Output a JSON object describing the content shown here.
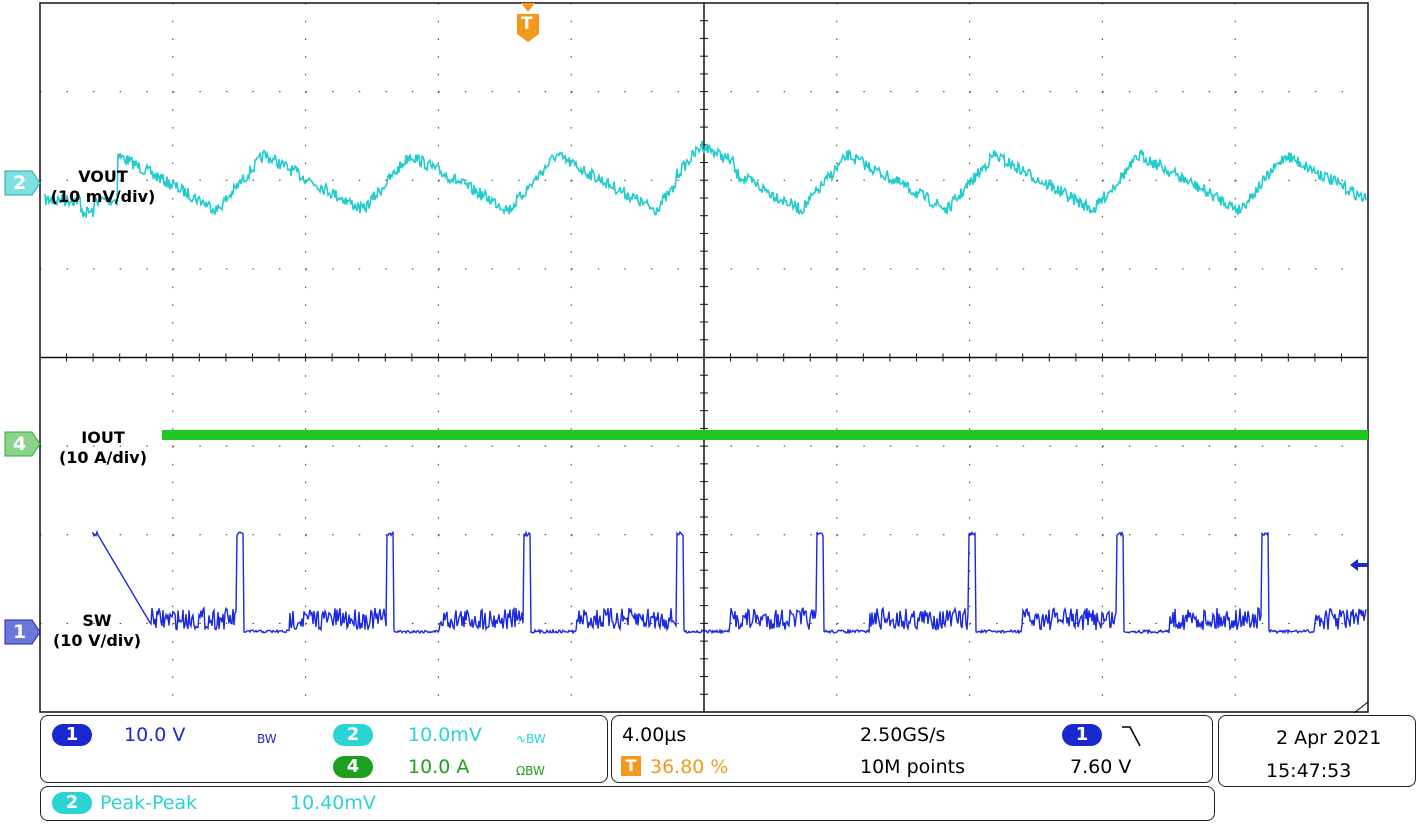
{
  "trigger_marker": "T",
  "channels": [
    {
      "number": "2",
      "label": "VOUT",
      "scale": "(10 mV/div)"
    },
    {
      "number": "4",
      "label": "IOUT",
      "scale": "(10 A/div)"
    },
    {
      "number": "1",
      "label": "SW",
      "scale": "(10 V/div)"
    }
  ],
  "status": {
    "ch1": {
      "number": "1",
      "scale": "10.0 V",
      "flags": "BW"
    },
    "ch2": {
      "number": "2",
      "scale": "10.0mV",
      "flags": "∿BW"
    },
    "ch4": {
      "number": "4",
      "scale": "10.0 A",
      "flags": "ΩBW"
    },
    "timebase": "4.00µs",
    "trigger_icon": "T",
    "trigger_position": "36.80 %",
    "sample_rate": "2.50GS/s",
    "record_length": "10M points",
    "trigger_source": "1",
    "trigger_level": "7.60 V",
    "date": "2 Apr 2021",
    "time": "15:47:53"
  },
  "measurement": {
    "channel": "2",
    "name": "Peak-Peak",
    "value": "10.40mV"
  }
}
